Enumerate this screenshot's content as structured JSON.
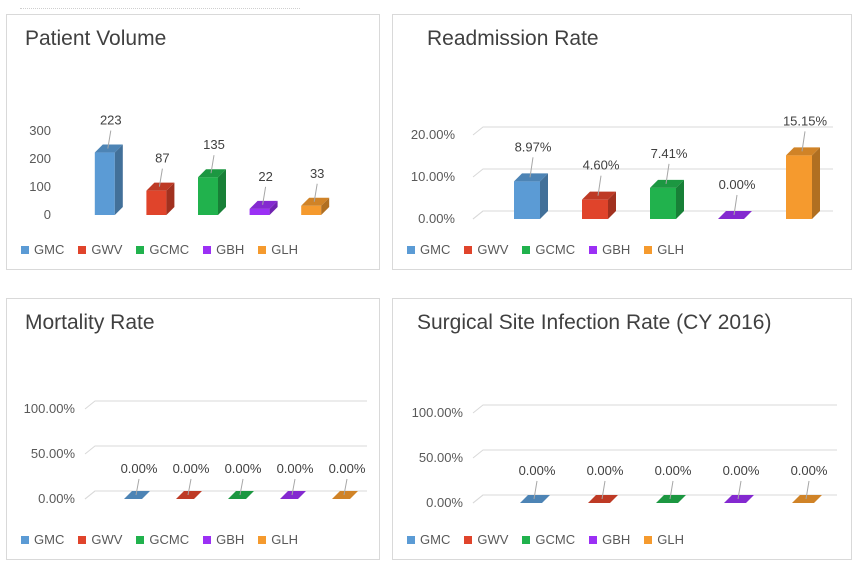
{
  "colors": {
    "GMC": "#5b9bd5",
    "GWV": "#e0442b",
    "GCMC": "#21b24d",
    "GBH": "#9b30f5",
    "GLH": "#f59a2e"
  },
  "chart_data": [
    {
      "type": "bar",
      "title": "Patient Volume",
      "categories": [
        "GMC",
        "GWV",
        "GCMC",
        "GBH",
        "GLH"
      ],
      "values": [
        223,
        87,
        135,
        22,
        33
      ],
      "data_labels": [
        "223",
        "87",
        "135",
        "22",
        "33"
      ],
      "yticks": [
        "300",
        "200",
        "100",
        "0"
      ],
      "ylim": [
        0,
        300
      ],
      "legend": [
        "GMC",
        "GWV",
        "GCMC",
        "GBH",
        "GLH"
      ],
      "legend_position": "bottom-left",
      "grid": false,
      "style": "3d-column"
    },
    {
      "type": "bar",
      "title": "Readmission Rate",
      "categories": [
        "GMC",
        "GWV",
        "GCMC",
        "GBH",
        "GLH"
      ],
      "values": [
        8.97,
        4.6,
        7.41,
        0.0,
        15.15
      ],
      "data_labels": [
        "8.97%",
        "4.60%",
        "7.41%",
        "0.00%",
        "15.15%"
      ],
      "yticks": [
        "20.00%",
        "10.00%",
        "0.00%"
      ],
      "ylim": [
        0,
        20
      ],
      "legend": [
        "GMC",
        "GWV",
        "GCMC",
        "GBH",
        "GLH"
      ],
      "legend_position": "bottom-left",
      "grid": true,
      "style": "3d-column"
    },
    {
      "type": "bar",
      "title": "Mortality Rate",
      "categories": [
        "GMC",
        "GWV",
        "GCMC",
        "GBH",
        "GLH"
      ],
      "values": [
        0,
        0,
        0,
        0,
        0
      ],
      "data_labels": [
        "0.00%",
        "0.00%",
        "0.00%",
        "0.00%",
        "0.00%"
      ],
      "yticks": [
        "100.00%",
        "50.00%",
        "0.00%"
      ],
      "ylim": [
        0,
        100
      ],
      "legend": [
        "GMC",
        "GWV",
        "GCMC",
        "GBH",
        "GLH"
      ],
      "legend_position": "bottom-left",
      "grid": true,
      "style": "3d-column"
    },
    {
      "type": "bar",
      "title": "Surgical Site Infection Rate (CY 2016)",
      "categories": [
        "GMC",
        "GWV",
        "GCMC",
        "GBH",
        "GLH"
      ],
      "values": [
        0,
        0,
        0,
        0,
        0
      ],
      "data_labels": [
        "0.00%",
        "0.00%",
        "0.00%",
        "0.00%",
        "0.00%"
      ],
      "yticks": [
        "100.00%",
        "50.00%",
        "0.00%"
      ],
      "ylim": [
        0,
        100
      ],
      "legend": [
        "GMC",
        "GWV",
        "GCMC",
        "GBH",
        "GLH"
      ],
      "legend_position": "bottom-left",
      "grid": true,
      "style": "3d-column"
    }
  ]
}
